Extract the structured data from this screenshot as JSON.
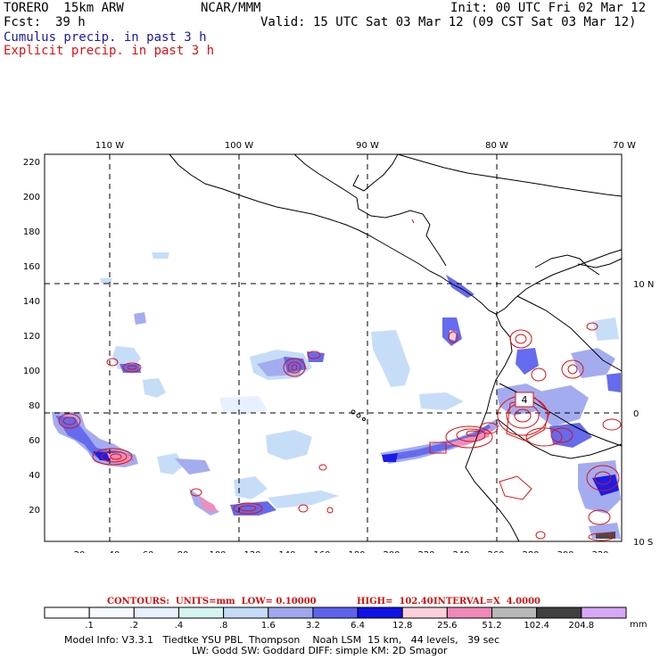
{
  "header": {
    "model": "TORERO  15km ARW",
    "org": "NCAR/MMM",
    "init": "Init: 00 UTC Fri 02 Mar 12",
    "fcst_label": "Fcst:",
    "fcst_value": "39 h",
    "valid": "Valid: 15 UTC Sat 03 Mar 12 (09 CST Sat 03 Mar 12)",
    "line_cumulus": "Cumulus precip. in past 3 h",
    "line_explicit": "Explicit precip. in past 3 h"
  },
  "map": {
    "lon_labels": [
      "110 W",
      "100 W",
      "90 W",
      "80 W",
      "70 W"
    ],
    "lat_labels": [
      "10 N",
      "0",
      "10 S"
    ],
    "y_ticks": [
      "220",
      "200",
      "180",
      "160",
      "140",
      "120",
      "100",
      "80",
      "60",
      "40",
      "20"
    ],
    "x_ticks": [
      "20",
      "40",
      "60",
      "80",
      "100",
      "120",
      "140",
      "160",
      "180",
      "200",
      "220",
      "240",
      "260",
      "280",
      "300",
      "320"
    ],
    "box_label": "4"
  },
  "contours": {
    "units": "CONTOURS:  UNITS=mm  LOW= 0.10000",
    "high": "HIGH=  102.40",
    "interval": "INTERVAL=X  4.0000"
  },
  "legend": {
    "labels": [
      ".1",
      ".2",
      ".4",
      ".8",
      "1.6",
      "3.2",
      "6.4",
      "12.8",
      "25.6",
      "51.2",
      "102.4",
      "204.8"
    ],
    "unit": "mm",
    "colors": [
      "#ffffff",
      "#f4f8ff",
      "#e6f0ff",
      "#d4f4f0",
      "#c4dcf8",
      "#a0a8f0",
      "#5c64ee",
      "#1010e8",
      "#fcd0d8",
      "#f088b8",
      "#b8b8b8",
      "#404040",
      "#d8a8f8"
    ]
  },
  "footer": {
    "line1": "Model Info: V3.3.1   Tiedtke YSU PBL  Thompson    Noah LSM  15 km,   44 levels,   39 sec",
    "line2": "LW: Godd SW: Goddard DIFF: simple KM: 2D Smagor"
  }
}
